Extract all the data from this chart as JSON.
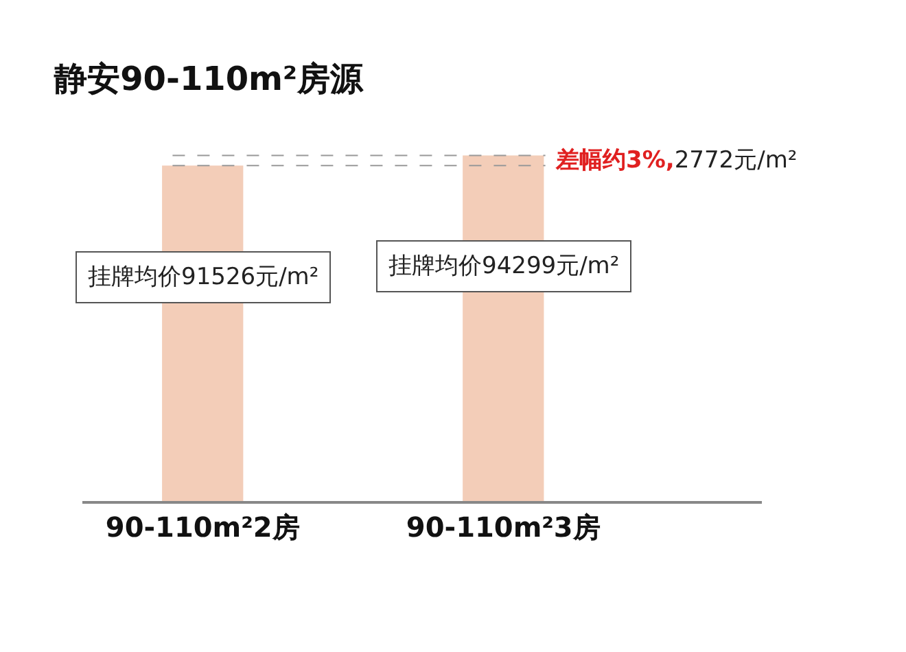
{
  "chart_data": {
    "type": "bar",
    "title": "静安90-110m²房源",
    "categories": [
      "90-110m²2房",
      "90-110m²3房"
    ],
    "values": [
      91526,
      94299
    ],
    "color": "#f3cdb8",
    "value_labels": [
      "挂牌均价91526元/m²",
      "挂牌均价94299元/m²"
    ],
    "legend": false,
    "ref_lines": [
      {
        "axis": "y",
        "value": 94299,
        "line_style": "dashed",
        "color": "#999999"
      },
      {
        "axis": "y",
        "value": 91526,
        "line_style": "dashed",
        "color": "#999999"
      }
    ],
    "annotations": [
      "差幅约3%,2772元/m²"
    ]
  }
}
